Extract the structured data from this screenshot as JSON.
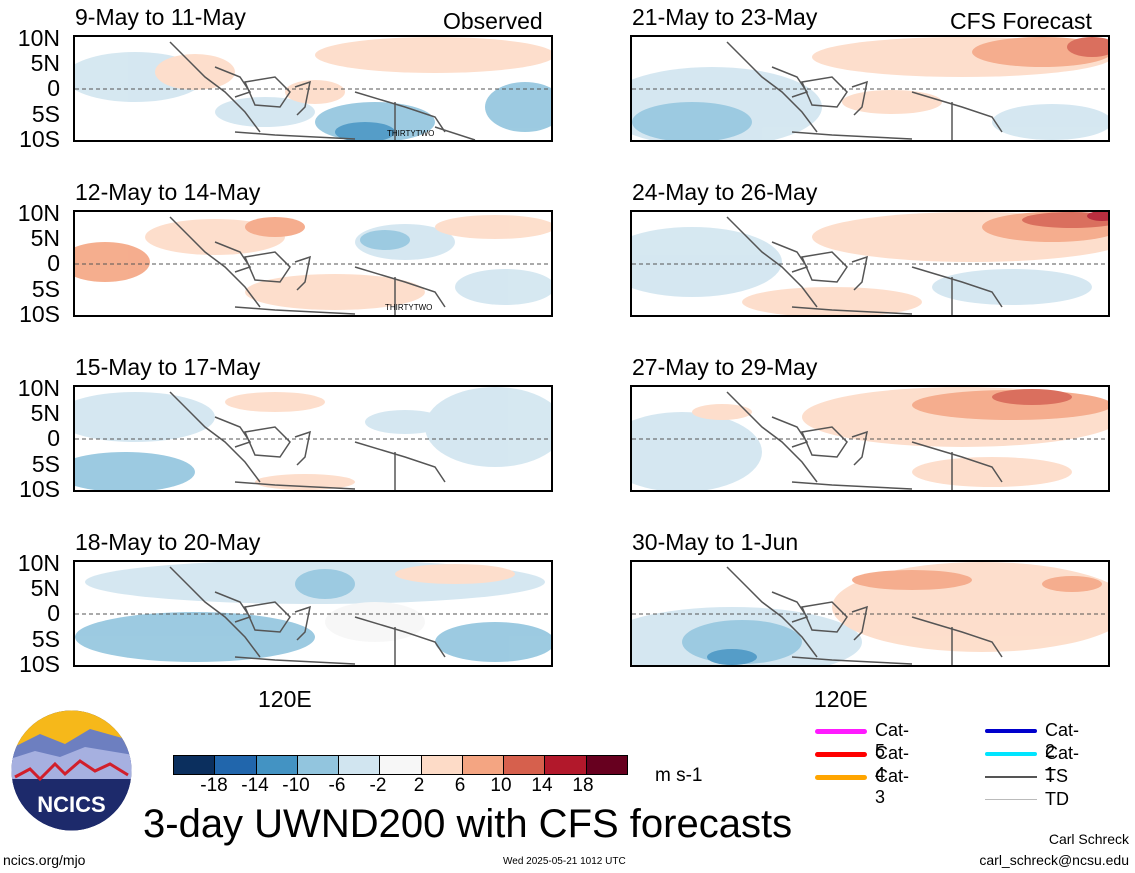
{
  "figure": {
    "main_title": "3-day UWND200 with CFS forecasts",
    "left_header": "Observed",
    "right_header": "CFS Forecast",
    "lon_label": "120E",
    "lat_labels": [
      "10N",
      "5N",
      "0",
      "5S",
      "10S"
    ],
    "storm_label": "THIRTYTWO"
  },
  "panels_left": [
    {
      "title": "9-May to 11-May"
    },
    {
      "title": "12-May to 14-May"
    },
    {
      "title": "15-May to 17-May"
    },
    {
      "title": "18-May to 20-May"
    }
  ],
  "panels_right": [
    {
      "title": "21-May to 23-May"
    },
    {
      "title": "24-May to 26-May"
    },
    {
      "title": "27-May to 29-May"
    },
    {
      "title": "30-May to 1-Jun"
    }
  ],
  "colorbar": {
    "units": "m s-1",
    "tick_labels": [
      "-18",
      "-14",
      "-10",
      "-6",
      "-2",
      "2",
      "6",
      "10",
      "14",
      "18"
    ],
    "colors": [
      "#0b2f5e",
      "#2166ac",
      "#4393c3",
      "#92c5de",
      "#d1e5f0",
      "#f7f7f7",
      "#fddbc7",
      "#f4a582",
      "#d6604d",
      "#b2182b",
      "#67001f"
    ]
  },
  "track_legend": {
    "left_items": [
      {
        "label": "Cat-5",
        "color": "#ff1aff"
      },
      {
        "label": "Cat-4",
        "color": "#ff0000"
      },
      {
        "label": "Cat-3",
        "color": "#ffa500"
      }
    ],
    "right_items": [
      {
        "label": "Cat-2",
        "color": "#0000cc"
      },
      {
        "label": "Cat-1",
        "color": "#00e5ff"
      },
      {
        "label": "TS",
        "color": "#555555"
      },
      {
        "label": "TD",
        "color": "#bbbbbb"
      }
    ]
  },
  "footer": {
    "logo_text": "NCICS",
    "url": "ncics.org/mjo",
    "timestamp": "Wed 2025-05-21 1012 UTC",
    "author": "Carl Schreck",
    "email": "carl_schreck@ncsu.edu"
  }
}
